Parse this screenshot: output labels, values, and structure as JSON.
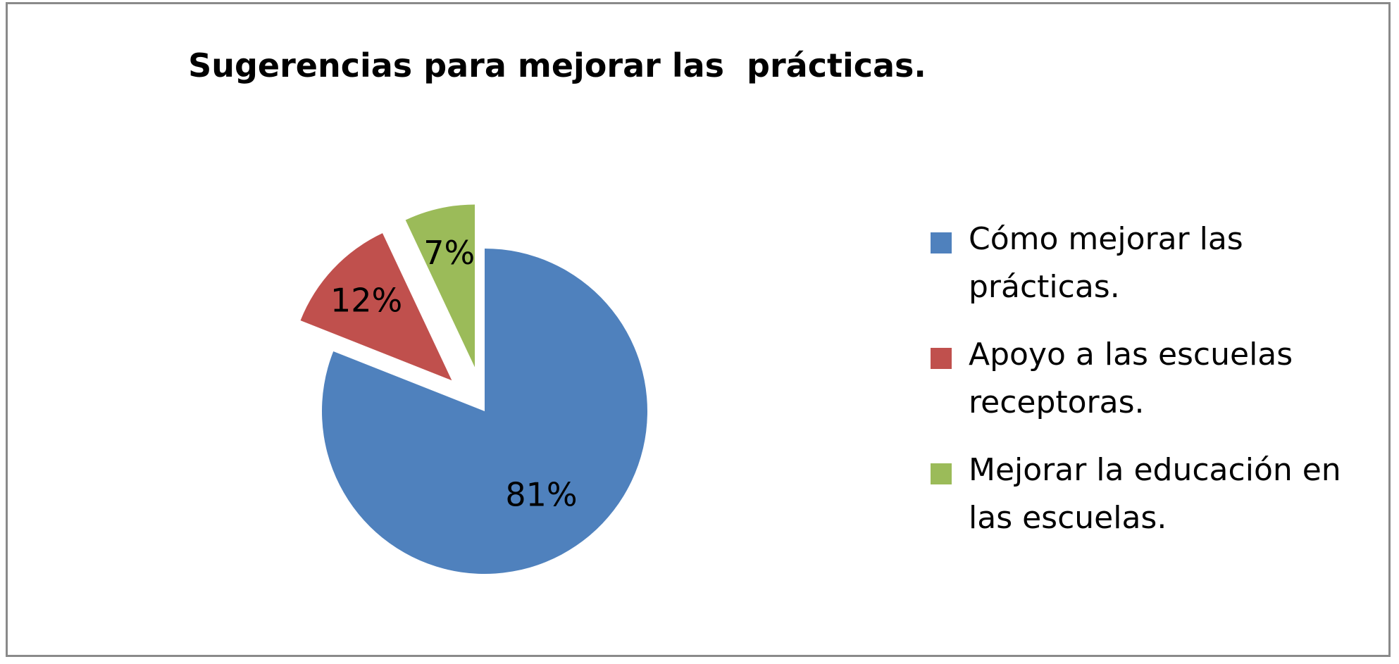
{
  "chart_data": {
    "type": "pie",
    "title": "Sugerencias para mejorar las  prácticas.",
    "legend_position": "right",
    "slices": [
      {
        "label": "Cómo mejorar las prácticas.",
        "value": 81,
        "display": "81%",
        "color": "#4F81BD",
        "exploded": false
      },
      {
        "label": "Apoyo a las escuelas receptoras.",
        "value": 12,
        "display": "12%",
        "color": "#C0504D",
        "exploded": true
      },
      {
        "label": "Mejorar la educación en las escuelas.",
        "value": 7,
        "display": "7%",
        "color": "#9BBB59",
        "exploded": true
      }
    ]
  }
}
